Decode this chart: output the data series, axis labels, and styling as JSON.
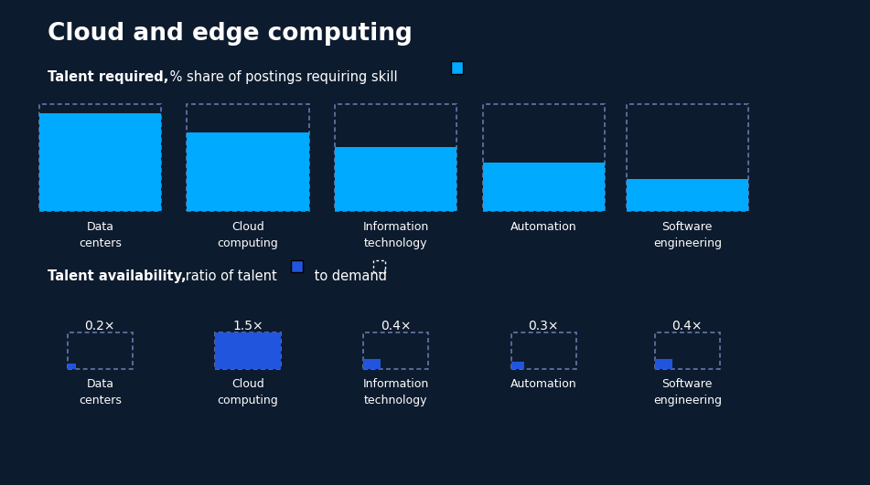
{
  "title": "Cloud and edge computing",
  "bg_color": "#0d1b2e",
  "text_color": "#ffffff",
  "cyan_color": "#00aaff",
  "blue_color": "#2255dd",
  "dashed_color": "#6677aa",
  "section1_label_bold": "Talent required,",
  "section1_label_normal": " % share of postings requiring skill",
  "section2_label_bold": "Talent availability,",
  "section2_label_normal": " ratio of talent",
  "section2_label_end": " to demand",
  "categories": [
    "Data\ncenters",
    "Cloud\ncomputing",
    "Information\ntechnology",
    "Automation",
    "Software\nengineering"
  ],
  "required_values": [
    55,
    44,
    36,
    27,
    18
  ],
  "required_max": 60,
  "availability_values": [
    0.2,
    1.5,
    0.4,
    0.3,
    0.4
  ],
  "availability_max": 1.5,
  "fig_width": 9.51,
  "fig_height": 5.31,
  "dpi": 100
}
